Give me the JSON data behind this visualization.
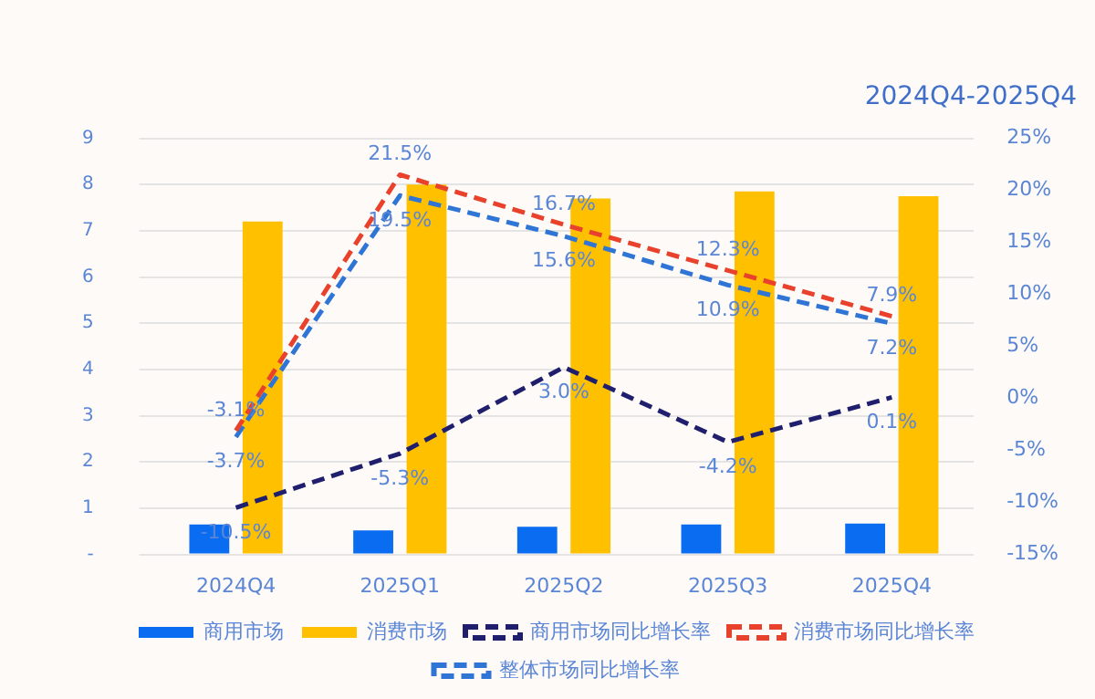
{
  "chart_data": {
    "type": "bar",
    "title": "2024Q4-2025Q4",
    "categories": [
      "2024Q4",
      "2025Q1",
      "2025Q2",
      "2025Q3",
      "2025Q4"
    ],
    "series": [
      {
        "name": "商用市场",
        "color": "#0a6cf0",
        "values": [
          0.65,
          0.52,
          0.6,
          0.65,
          0.67
        ]
      },
      {
        "name": "消费市场",
        "color": "#ffc000",
        "values": [
          7.2,
          8.0,
          7.7,
          7.85,
          7.75
        ]
      },
      {
        "name": "商用市场同比增长率",
        "type": "line",
        "axis": "y2",
        "color": "#1f1f6e",
        "line_style": "dashed",
        "values": [
          -10.5,
          -5.3,
          3.0,
          -4.2,
          0.1
        ],
        "value_labels": [
          "-10.5%",
          "-5.3%",
          "3.0%",
          "-4.2%",
          "0.1%"
        ]
      },
      {
        "name": "消费市场同比增长率",
        "type": "line",
        "axis": "y2",
        "color": "#e8412c",
        "line_style": "dashed",
        "values": [
          -3.1,
          21.5,
          16.7,
          12.3,
          7.9
        ],
        "value_labels": [
          "-3.1%",
          "21.5%",
          "16.7%",
          "12.3%",
          "7.9%"
        ]
      },
      {
        "name": "整体市场同比增长率",
        "type": "line",
        "axis": "y2",
        "color": "#2e75d6",
        "line_style": "dashed",
        "values": [
          -3.7,
          19.5,
          15.6,
          10.9,
          7.2
        ],
        "value_labels": [
          "-3.7%",
          "19.5%",
          "15.6%",
          "10.9%",
          "7.2%"
        ]
      }
    ],
    "ylim": [
      0,
      9
    ],
    "yticks": [
      {
        "value": 0,
        "label": "-"
      },
      1,
      2,
      3,
      4,
      5,
      6,
      7,
      8,
      9
    ],
    "y2lim": [
      -15,
      25
    ],
    "y2ticks": [
      {
        "value": -15,
        "label": "-15%"
      },
      {
        "value": -10,
        "label": "-10%"
      },
      {
        "value": -5,
        "label": "-5%"
      },
      {
        "value": 0,
        "label": "0%"
      },
      {
        "value": 5,
        "label": "5%"
      },
      {
        "value": 10,
        "label": "10%"
      },
      {
        "value": 15,
        "label": "15%"
      },
      {
        "value": 20,
        "label": "20%"
      },
      {
        "value": 25,
        "label": "25%"
      }
    ],
    "grid": "y",
    "legend": "bottom",
    "marker": "none"
  }
}
